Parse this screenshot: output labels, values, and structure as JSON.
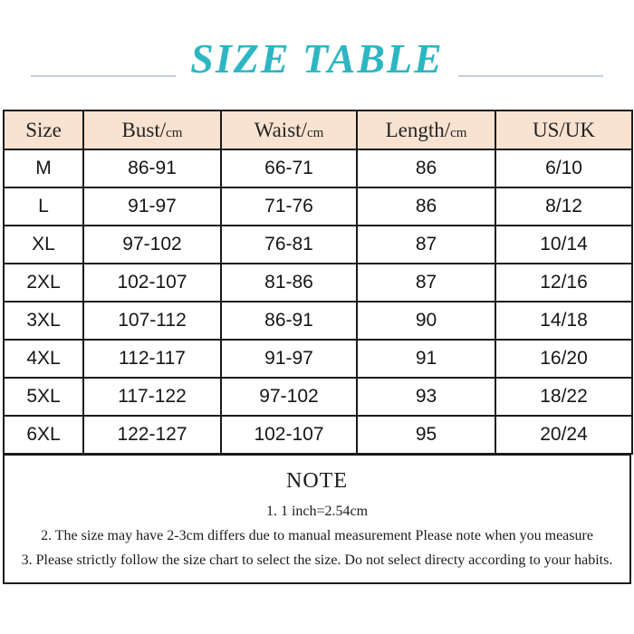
{
  "title": "SIZE TABLE",
  "colors": {
    "accent": "#2db6c2",
    "header_bg": "#f9e2d0",
    "table_border": "#1a1a1a",
    "title_rule": "#c9cfd8"
  },
  "table": {
    "columns": [
      {
        "label": "Size",
        "unit": ""
      },
      {
        "label": "Bust",
        "unit": "cm"
      },
      {
        "label": "Waist",
        "unit": "cm"
      },
      {
        "label": "Length",
        "unit": "cm"
      },
      {
        "label": "US/UK",
        "unit": ""
      }
    ],
    "rows": [
      [
        "M",
        "86-91",
        "66-71",
        "86",
        "6/10"
      ],
      [
        "L",
        "91-97",
        "71-76",
        "86",
        "8/12"
      ],
      [
        "XL",
        "97-102",
        "76-81",
        "87",
        "10/14"
      ],
      [
        "2XL",
        "102-107",
        "81-86",
        "87",
        "12/16"
      ],
      [
        "3XL",
        "107-112",
        "86-91",
        "90",
        "14/18"
      ],
      [
        "4XL",
        "112-117",
        "91-97",
        "91",
        "16/20"
      ],
      [
        "5XL",
        "117-122",
        "97-102",
        "93",
        "18/22"
      ],
      [
        "6XL",
        "122-127",
        "102-107",
        "95",
        "20/24"
      ]
    ]
  },
  "note": {
    "heading": "NOTE",
    "lines": [
      "1. 1 inch=2.54cm",
      "2. The size may have 2-3cm differs due to manual measurement Please note when you measure",
      "3. Please strictly follow the size chart to select the size. Do not select directy according to your habits."
    ]
  }
}
